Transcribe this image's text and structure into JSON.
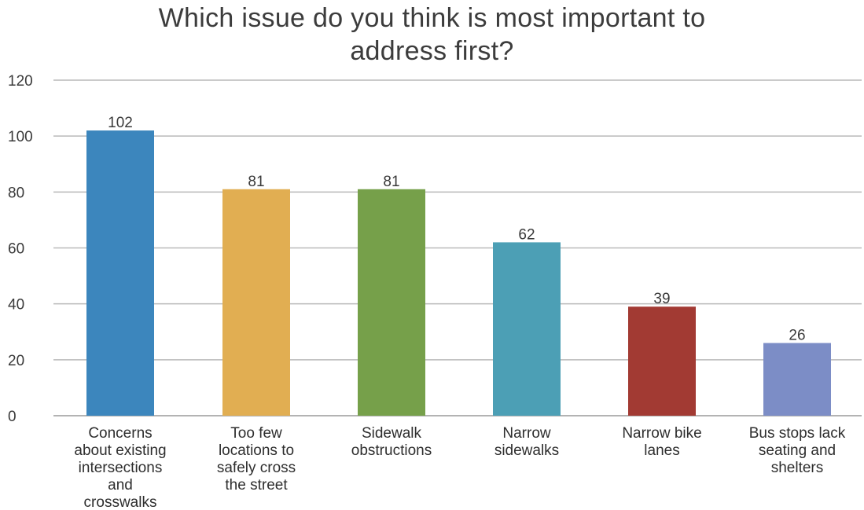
{
  "chart_data": {
    "type": "bar",
    "title": "Which issue do you think is most important to address first?",
    "title_lines": [
      "Which issue do you think is most important to",
      "address first?"
    ],
    "categories": [
      "Concerns about existing intersections and crosswalks",
      "Too few locations to safely cross the street",
      "Sidewalk obstructions",
      "Narrow sidewalks",
      "Narrow bike lanes",
      "Bus stops lack seating and shelters"
    ],
    "category_lines": [
      [
        "Concerns",
        "about existing",
        "intersections",
        "and",
        "crosswalks"
      ],
      [
        "Too few",
        "locations to",
        "safely cross",
        "the street"
      ],
      [
        "Sidewalk",
        "obstructions"
      ],
      [
        "Narrow",
        "sidewalks"
      ],
      [
        "Narrow bike",
        "lanes"
      ],
      [
        "Bus stops lack",
        "seating and",
        "shelters"
      ]
    ],
    "values": [
      102,
      81,
      81,
      62,
      39,
      26
    ],
    "data_labels": [
      "102",
      "81",
      "81",
      "62",
      "39",
      "26"
    ],
    "bar_colors": [
      "#3c86bd",
      "#e1ae52",
      "#76a04a",
      "#4c9fb5",
      "#a23a33",
      "#7c8dc6"
    ],
    "xlabel": "",
    "ylabel": "",
    "ylim": [
      0,
      120
    ],
    "y_ticks": [
      0,
      20,
      40,
      60,
      80,
      100,
      120
    ],
    "grid": true,
    "legend": "none"
  }
}
